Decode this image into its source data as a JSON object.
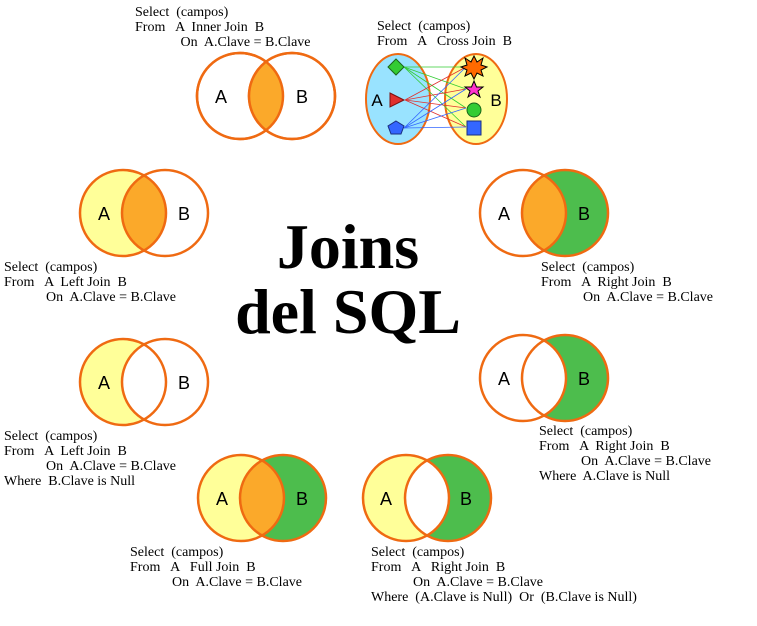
{
  "title": {
    "line1": "Joins",
    "line2": "del SQL"
  },
  "colors": {
    "a_fill": "#ffff99",
    "overlap_fill": "#fba92a",
    "b_fill": "#4dbd4d",
    "stroke": "#ef6a12",
    "cross_a": "#99e3ff",
    "cross_b": "#ffff99"
  },
  "inner_join": {
    "a": "A",
    "b": "B",
    "lines": [
      "Select  (campos)",
      "From   A  Inner Join  B",
      "             On  A.Clave = B.Clave"
    ]
  },
  "cross_join": {
    "a": "A",
    "b": "B",
    "lines": [
      "Select  (campos)",
      "From   A   Cross Join  B"
    ]
  },
  "left_join": {
    "a": "A",
    "b": "B",
    "lines": [
      "Select  (campos)",
      "From   A  Left Join  B",
      "            On  A.Clave = B.Clave"
    ]
  },
  "right_join": {
    "a": "A",
    "b": "B",
    "lines": [
      "Select  (campos)",
      "From   A  Right Join  B",
      "            On  A.Clave = B.Clave"
    ]
  },
  "left_excl": {
    "a": "A",
    "b": "B",
    "lines": [
      "Select  (campos)",
      "From   A  Left Join  B",
      "            On  A.Clave = B.Clave",
      "Where  B.Clave is Null"
    ]
  },
  "right_excl": {
    "a": "A",
    "b": "B",
    "lines": [
      "Select  (campos)",
      "From   A  Right Join  B",
      "            On  A.Clave = B.Clave",
      "Where  A.Clave is Null"
    ]
  },
  "full_join": {
    "a": "A",
    "b": "B",
    "lines": [
      "Select  (campos)",
      "From   A   Full Join  B",
      "            On  A.Clave = B.Clave"
    ]
  },
  "full_excl": {
    "a": "A",
    "b": "B",
    "lines": [
      "Select  (campos)",
      "From   A   Right Join  B",
      "            On  A.Clave = B.Clave",
      "Where  (A.Clave is Null)  Or  (B.Clave is Null)"
    ]
  }
}
